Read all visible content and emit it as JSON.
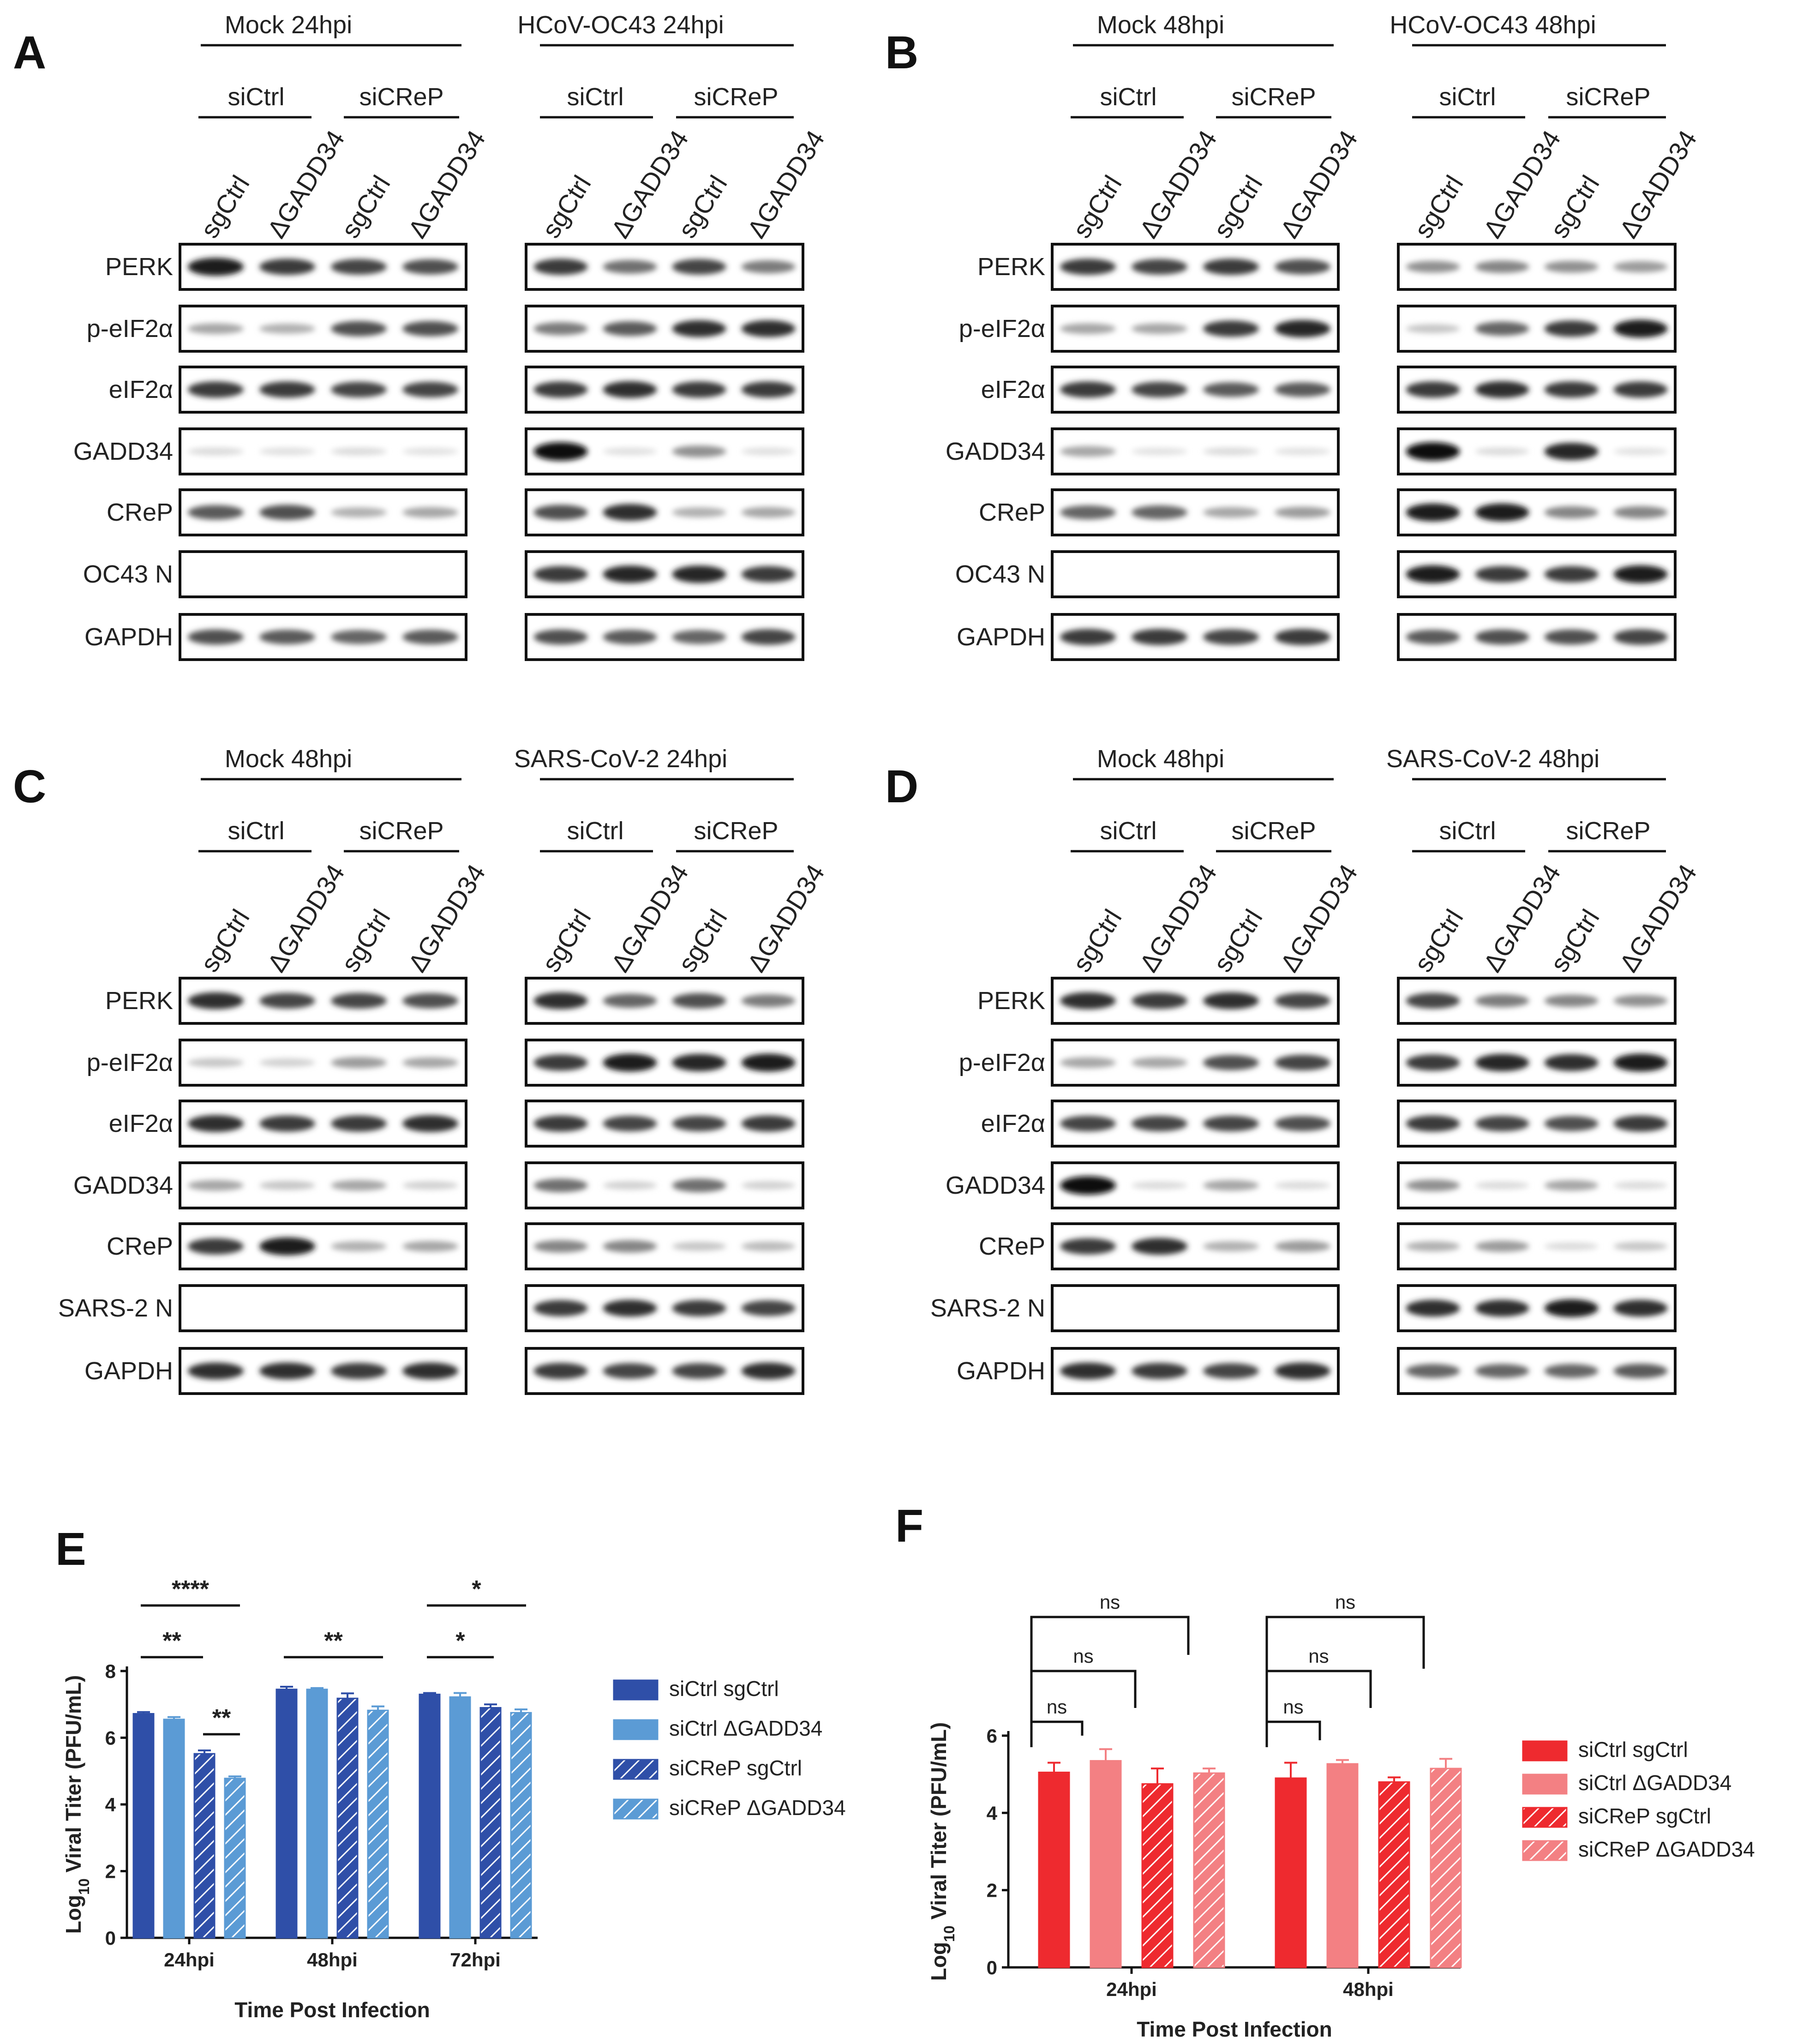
{
  "panels": {
    "A": {
      "letter": "A",
      "group_left": "Mock 24hpi",
      "group_right": "HCoV-OC43 24hpi",
      "viral_row": "OC43 N"
    },
    "B": {
      "letter": "B",
      "group_left": "Mock 48hpi",
      "group_right": "HCoV-OC43 48hpi",
      "viral_row": "OC43 N"
    },
    "C": {
      "letter": "C",
      "group_left": "Mock 48hpi",
      "group_right": "SARS-CoV-2 24hpi",
      "viral_row": "SARS-2 N"
    },
    "D": {
      "letter": "D",
      "group_left": "Mock 48hpi",
      "group_right": "SARS-CoV-2 48hpi",
      "viral_row": "SARS-2 N"
    }
  },
  "blot": {
    "si_labels": [
      "siCtrl",
      "siCReP",
      "siCtrl",
      "siCReP"
    ],
    "lane_labels": [
      "sgCtrl",
      "ΔGADD34",
      "sgCtrl",
      "ΔGADD34",
      "sgCtrl",
      "ΔGADD34",
      "sgCtrl",
      "ΔGADD34"
    ],
    "rows_top": [
      "PERK",
      "p-eIF2α",
      "eIF2α",
      "GADD34",
      "CReP"
    ],
    "row_bottom": "GAPDH",
    "intensities": {
      "A": [
        [
          0.95,
          0.8,
          0.75,
          0.7,
          0.8,
          0.55,
          0.75,
          0.5
        ],
        [
          0.3,
          0.25,
          0.7,
          0.7,
          0.5,
          0.65,
          0.85,
          0.85
        ],
        [
          0.8,
          0.8,
          0.75,
          0.75,
          0.8,
          0.85,
          0.8,
          0.8
        ],
        [
          0.05,
          0.03,
          0.05,
          0.02,
          1.0,
          0.03,
          0.4,
          0.03
        ],
        [
          0.65,
          0.7,
          0.25,
          0.3,
          0.7,
          0.85,
          0.25,
          0.3
        ],
        [
          0,
          0,
          0,
          0,
          0.8,
          0.9,
          0.9,
          0.8
        ],
        [
          0.7,
          0.65,
          0.6,
          0.65,
          0.7,
          0.65,
          0.6,
          0.75
        ]
      ],
      "B": [
        [
          0.8,
          0.75,
          0.8,
          0.7,
          0.4,
          0.45,
          0.4,
          0.35
        ],
        [
          0.3,
          0.3,
          0.8,
          0.9,
          0.15,
          0.6,
          0.8,
          0.95
        ],
        [
          0.8,
          0.75,
          0.65,
          0.65,
          0.8,
          0.85,
          0.8,
          0.8
        ],
        [
          0.3,
          0.02,
          0.05,
          0.02,
          1.0,
          0.05,
          0.9,
          0.02
        ],
        [
          0.6,
          0.6,
          0.3,
          0.35,
          0.95,
          0.95,
          0.45,
          0.45
        ],
        [
          0,
          0,
          0,
          0,
          0.95,
          0.8,
          0.8,
          0.95
        ],
        [
          0.8,
          0.8,
          0.75,
          0.8,
          0.65,
          0.7,
          0.7,
          0.75
        ]
      ],
      "C": [
        [
          0.85,
          0.75,
          0.75,
          0.7,
          0.85,
          0.6,
          0.7,
          0.5
        ],
        [
          0.15,
          0.1,
          0.35,
          0.3,
          0.8,
          0.95,
          0.9,
          0.95
        ],
        [
          0.85,
          0.8,
          0.8,
          0.85,
          0.8,
          0.75,
          0.75,
          0.8
        ],
        [
          0.3,
          0.15,
          0.3,
          0.1,
          0.55,
          0.1,
          0.55,
          0.1
        ],
        [
          0.8,
          0.95,
          0.25,
          0.3,
          0.45,
          0.45,
          0.15,
          0.2
        ],
        [
          0,
          0,
          0,
          0,
          0.8,
          0.85,
          0.8,
          0.75
        ],
        [
          0.85,
          0.85,
          0.8,
          0.85,
          0.8,
          0.75,
          0.75,
          0.85
        ]
      ],
      "D": [
        [
          0.85,
          0.8,
          0.85,
          0.75,
          0.75,
          0.5,
          0.45,
          0.4
        ],
        [
          0.3,
          0.3,
          0.7,
          0.75,
          0.8,
          0.9,
          0.85,
          0.95
        ],
        [
          0.75,
          0.75,
          0.75,
          0.7,
          0.8,
          0.75,
          0.7,
          0.8
        ],
        [
          1.0,
          0.05,
          0.3,
          0.05,
          0.4,
          0.05,
          0.3,
          0.05
        ],
        [
          0.8,
          0.85,
          0.25,
          0.35,
          0.25,
          0.35,
          0.05,
          0.15
        ],
        [
          0,
          0,
          0,
          0,
          0.85,
          0.85,
          0.95,
          0.85
        ],
        [
          0.85,
          0.8,
          0.75,
          0.85,
          0.6,
          0.6,
          0.6,
          0.65
        ]
      ]
    }
  },
  "charts": {
    "E": {
      "letter": "E",
      "ylabel_prefix": "Log",
      "ylabel_sub": "10",
      "ylabel_rest": " Viral Titer (PFU/mL)",
      "xlabel": "Time Post Infection",
      "legend_colors": [
        "#2f4fa8",
        "#5b9bd5",
        "#2f4fa8",
        "#5b9bd5"
      ],
      "legend_hatched": [
        false,
        false,
        true,
        true
      ],
      "significance": [
        "****",
        "**",
        "**",
        "**",
        "*",
        "*"
      ]
    },
    "F": {
      "letter": "F",
      "ylabel_prefix": "Log",
      "ylabel_sub": "10",
      "ylabel_rest": " Viral Titer (PFU/mL)",
      "xlabel": "Time Post Infection",
      "legend_colors": [
        "#ee2a2f",
        "#f38083",
        "#ee2a2f",
        "#f38083"
      ],
      "legend_hatched": [
        false,
        false,
        true,
        true
      ],
      "significance": [
        "ns",
        "ns",
        "ns",
        "ns",
        "ns",
        "ns"
      ]
    }
  },
  "chart_data": [
    {
      "type": "bar",
      "title": "",
      "xlabel": "Time Post Infection",
      "ylabel": "Log10 Viral Titer (PFU/mL)",
      "categories": [
        "24hpi",
        "48hpi",
        "72hpi"
      ],
      "ylim": [
        0,
        8
      ],
      "yticks": [
        0,
        2,
        4,
        6,
        8
      ],
      "series": [
        {
          "name": "siCtrl sgCtrl",
          "values": [
            6.72,
            7.45,
            7.3
          ],
          "errors": [
            0.05,
            0.08,
            0.04
          ]
        },
        {
          "name": "siCtrl ΔGADD34",
          "values": [
            6.55,
            7.45,
            7.22
          ],
          "errors": [
            0.07,
            0.04,
            0.12
          ]
        },
        {
          "name": "siCReP sgCtrl",
          "values": [
            5.52,
            7.18,
            6.9
          ],
          "errors": [
            0.1,
            0.15,
            0.1
          ]
        },
        {
          "name": "siCReP ΔGADD34",
          "values": [
            4.78,
            6.82,
            6.75
          ],
          "errors": [
            0.06,
            0.12,
            0.1
          ]
        }
      ]
    },
    {
      "type": "bar",
      "title": "",
      "xlabel": "Time Post Infection",
      "ylabel": "Log10 Viral Titer (PFU/mL)",
      "categories": [
        "24hpi",
        "48hpi"
      ],
      "ylim": [
        0,
        6
      ],
      "yticks": [
        0,
        2,
        4,
        6
      ],
      "series": [
        {
          "name": "siCtrl sgCtrl",
          "values": [
            5.05,
            4.9
          ],
          "errors": [
            0.25,
            0.4
          ]
        },
        {
          "name": "siCtrl ΔGADD34",
          "values": [
            5.35,
            5.27
          ],
          "errors": [
            0.3,
            0.1
          ]
        },
        {
          "name": "siCReP sgCtrl",
          "values": [
            4.75,
            4.8
          ],
          "errors": [
            0.4,
            0.12
          ]
        },
        {
          "name": "siCReP ΔGADD34",
          "values": [
            5.03,
            5.15
          ],
          "errors": [
            0.12,
            0.25
          ]
        }
      ]
    }
  ]
}
